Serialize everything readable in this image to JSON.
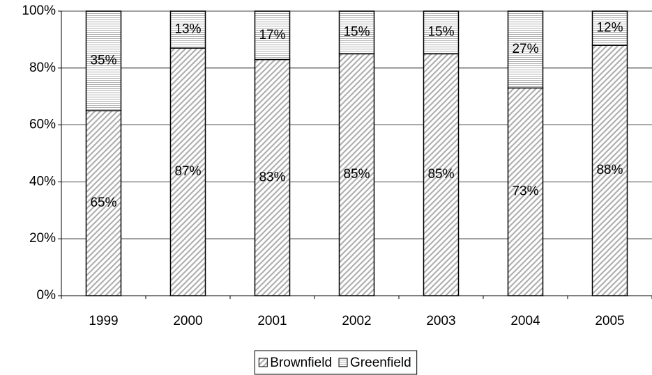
{
  "chart_data": {
    "type": "stacked-bar",
    "categories": [
      "1999",
      "2000",
      "2001",
      "2002",
      "2003",
      "2004",
      "2005"
    ],
    "series": [
      {
        "name": "Brownfield",
        "color": "#b0b0b0",
        "pattern": "diagonal",
        "values": [
          65,
          87,
          83,
          85,
          85,
          73,
          88
        ],
        "value_labels": [
          "65%",
          "87%",
          "83%",
          "85%",
          "85%",
          "73%",
          "88%"
        ]
      },
      {
        "name": "Greenfield",
        "color": "#b0b0b0",
        "pattern": "horizontal",
        "values": [
          35,
          13,
          17,
          15,
          15,
          27,
          12
        ],
        "value_labels": [
          "35%",
          "13%",
          "17%",
          "15%",
          "15%",
          "27%",
          "12%"
        ]
      }
    ],
    "ylim": [
      0,
      100
    ],
    "yticks": [
      {
        "value": 0,
        "label": "0%"
      },
      {
        "value": 20,
        "label": "20%"
      },
      {
        "value": 40,
        "label": "40%"
      },
      {
        "value": 60,
        "label": "60%"
      },
      {
        "value": 80,
        "label": "80%"
      },
      {
        "value": 100,
        "label": "100%"
      }
    ],
    "grid": true,
    "legend": "bottom"
  }
}
